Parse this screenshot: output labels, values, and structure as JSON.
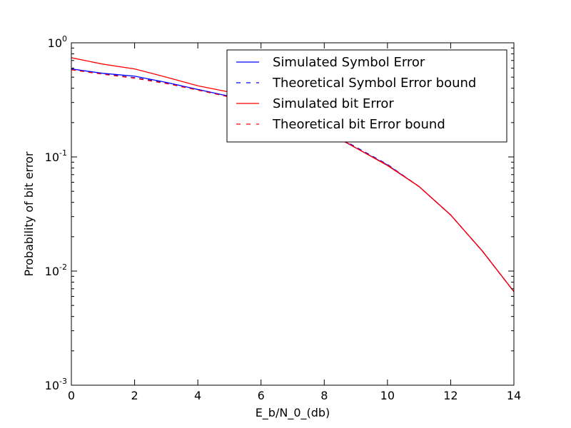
{
  "chart_data": {
    "type": "line",
    "title": "",
    "xlabel": "E_b/N_0_(db)",
    "ylabel": "Probability of bit error",
    "xlim": [
      0,
      14
    ],
    "ylim": [
      0.001,
      1
    ],
    "yscale": "log",
    "grid": false,
    "legend_position": "upper-right",
    "x_ticks": [
      {
        "value": 0,
        "label": "0"
      },
      {
        "value": 2,
        "label": "2"
      },
      {
        "value": 4,
        "label": "4"
      },
      {
        "value": 6,
        "label": "6"
      },
      {
        "value": 8,
        "label": "8"
      },
      {
        "value": 10,
        "label": "10"
      },
      {
        "value": 12,
        "label": "12"
      },
      {
        "value": 14,
        "label": "14"
      }
    ],
    "y_ticks": [
      {
        "value": 1,
        "base": "10",
        "exp": "0"
      },
      {
        "value": 0.1,
        "base": "10",
        "exp": "-1"
      },
      {
        "value": 0.01,
        "base": "10",
        "exp": "-2"
      },
      {
        "value": 0.001,
        "base": "10",
        "exp": "-3"
      }
    ],
    "series": [
      {
        "name": "Simulated Symbol Error",
        "color": "#0000ff",
        "style": "solid",
        "x": [
          0,
          1,
          2,
          3,
          4,
          5,
          6,
          7,
          8,
          9,
          10,
          11,
          12,
          13,
          14
        ],
        "y": [
          0.59,
          0.54,
          0.51,
          0.45,
          0.39,
          0.34,
          0.3,
          0.24,
          0.17,
          0.12,
          0.085,
          0.055,
          0.031,
          0.015,
          0.0066
        ]
      },
      {
        "name": "Theoretical Symbol Error bound",
        "color": "#0000ff",
        "style": "dashed",
        "x": [
          0,
          1,
          2,
          3,
          4,
          5,
          6,
          7,
          8,
          9,
          10,
          11,
          12,
          13,
          14
        ],
        "y": [
          0.585,
          0.535,
          0.495,
          0.445,
          0.39,
          0.34,
          0.295,
          0.24,
          0.175,
          0.122,
          0.086,
          0.055,
          0.031,
          0.015,
          0.0066
        ]
      },
      {
        "name": "Simulated bit Error",
        "color": "#ff0000",
        "style": "solid",
        "x": [
          0,
          1,
          2,
          3,
          4,
          5,
          6,
          7,
          8,
          9,
          10,
          11,
          12,
          13,
          14
        ],
        "y": [
          0.74,
          0.65,
          0.59,
          0.5,
          0.42,
          0.37,
          0.31,
          0.25,
          0.175,
          0.12,
          0.084,
          0.055,
          0.031,
          0.015,
          0.0066
        ]
      },
      {
        "name": "Theoretical bit Error bound",
        "color": "#ff0000",
        "style": "dashed",
        "x": [
          0,
          1,
          2,
          3,
          4,
          5,
          6,
          7,
          8,
          9,
          10,
          11,
          12,
          13,
          14
        ],
        "y": [
          0.58,
          0.53,
          0.49,
          0.44,
          0.385,
          0.335,
          0.29,
          0.235,
          0.17,
          0.12,
          0.085,
          0.055,
          0.031,
          0.015,
          0.0066
        ]
      }
    ]
  }
}
